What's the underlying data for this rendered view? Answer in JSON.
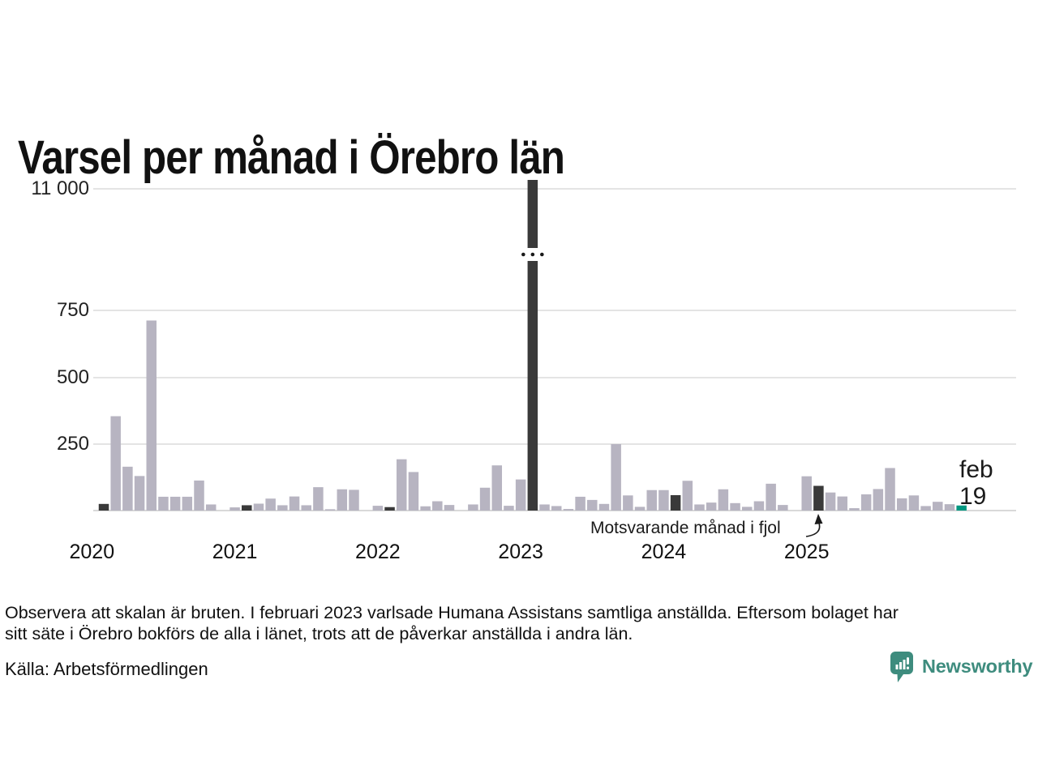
{
  "title": "Varsel per månad i Örebro län",
  "chart_data": {
    "type": "bar",
    "title": "Varsel per månad i Örebro län",
    "start_month": "2020-01",
    "end_month": "2026-02",
    "values": [
      0,
      25,
      355,
      165,
      130,
      715,
      52,
      52,
      52,
      113,
      23,
      0,
      12,
      20,
      26,
      45,
      20,
      53,
      20,
      88,
      5,
      80,
      78,
      0,
      18,
      13,
      193,
      145,
      16,
      35,
      21,
      0,
      23,
      86,
      170,
      18,
      117,
      11000,
      23,
      17,
      6,
      52,
      40,
      25,
      250,
      57,
      14,
      77,
      77,
      58,
      112,
      23,
      30,
      80,
      28,
      14,
      35,
      101,
      21,
      0,
      129,
      93,
      68,
      53,
      9,
      61,
      81,
      160,
      46,
      57,
      17,
      33,
      24,
      19
    ],
    "highlight_indices": [
      1,
      13,
      25,
      37,
      49,
      61
    ],
    "current_index": 73,
    "broken_bar_index": 37,
    "broken_axis": true,
    "y_ticks": [
      {
        "label": "11 000",
        "value": 11000
      },
      {
        "label": "750",
        "value": 750
      },
      {
        "label": "500",
        "value": 500
      },
      {
        "label": "250",
        "value": 250
      }
    ],
    "year_labels": [
      "2020",
      "2021",
      "2022",
      "2023",
      "2024",
      "2025"
    ],
    "annotation": "Motsvarande månad i fjol",
    "current_point_label": {
      "month": "feb",
      "value": "19"
    },
    "ylim_lower_segment": [
      0,
      800
    ],
    "legend_position": "none",
    "grid": "horizontal",
    "colors": {
      "bar": "#b7b4c1",
      "highlight_bar": "#3a3a3a",
      "current_bar": "#009780",
      "gridline": "#e4e4e4",
      "baseline": "#d9d9d9",
      "annotation_ink": "#1a1a1a"
    }
  },
  "footer": {
    "note": "Observera att skalan är bruten. I februari 2023 varlsade Humana Assistans samtliga anställda. Eftersom bolaget har\nsitt säte i Örebro bokförs de alla i länet, trots att de påverkar anställda i andra län.",
    "source": "Källa: Arbetsförmedlingen",
    "brand": "Newsworthy",
    "brand_color": "#3e8c7e"
  }
}
